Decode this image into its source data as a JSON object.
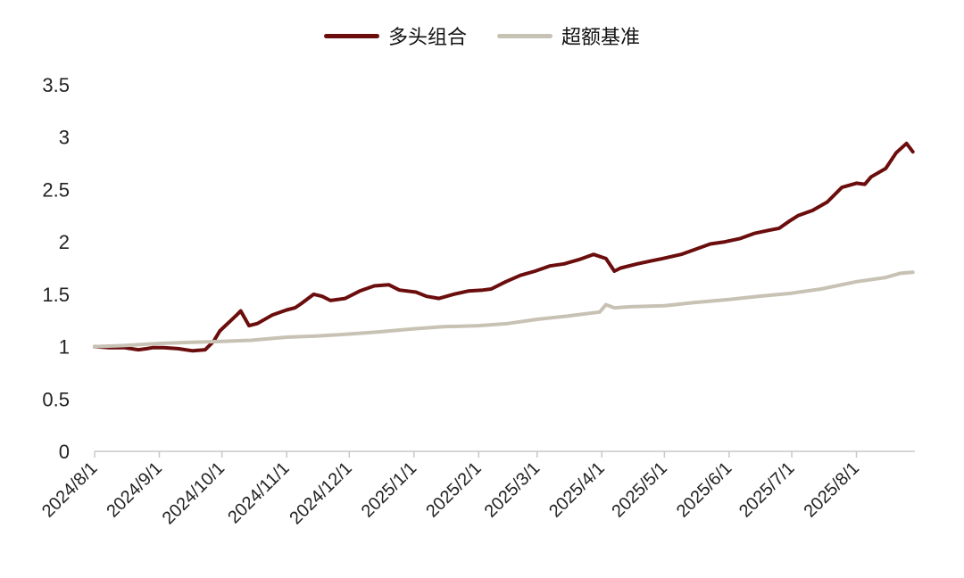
{
  "colors": {
    "portfolio": "#6b0d0d",
    "benchmark": "#c7c2b4",
    "axis": "#c8c8c8"
  },
  "chart_data": {
    "type": "line",
    "title": "",
    "xlabel": "",
    "ylabel": "",
    "ylim": [
      0,
      3.5
    ],
    "yticks": [
      "0",
      "0.5",
      "1",
      "1.5",
      "2",
      "2.5",
      "3",
      "3.5"
    ],
    "grid": false,
    "legend_position": "top-center",
    "x_range": [
      "2024-08-01",
      "2025-08-29"
    ],
    "xticks": [
      "2024/8/1",
      "2024/9/1",
      "2024/10/1",
      "2024/11/1",
      "2024/12/1",
      "2025/1/1",
      "2025/2/1",
      "2025/3/1",
      "2025/4/1",
      "2025/5/1",
      "2025/6/1",
      "2025/7/1",
      "2025/8/1"
    ],
    "series": [
      {
        "name": "多头组合",
        "color": "#6b0d0d",
        "points": [
          [
            "2024-08-01",
            1.0
          ],
          [
            "2024-08-08",
            0.99
          ],
          [
            "2024-08-15",
            0.99
          ],
          [
            "2024-08-22",
            0.97
          ],
          [
            "2024-08-26",
            0.98
          ],
          [
            "2024-08-29",
            0.99
          ],
          [
            "2024-09-03",
            0.99
          ],
          [
            "2024-09-10",
            0.98
          ],
          [
            "2024-09-17",
            0.96
          ],
          [
            "2024-09-23",
            0.97
          ],
          [
            "2024-09-27",
            1.05
          ],
          [
            "2024-09-30",
            1.15
          ],
          [
            "2024-10-08",
            1.3
          ],
          [
            "2024-10-10",
            1.34
          ],
          [
            "2024-10-14",
            1.2
          ],
          [
            "2024-10-18",
            1.22
          ],
          [
            "2024-10-25",
            1.3
          ],
          [
            "2024-11-01",
            1.35
          ],
          [
            "2024-11-05",
            1.37
          ],
          [
            "2024-11-08",
            1.41
          ],
          [
            "2024-11-14",
            1.5
          ],
          [
            "2024-11-18",
            1.48
          ],
          [
            "2024-11-22",
            1.44
          ],
          [
            "2024-11-29",
            1.46
          ],
          [
            "2024-12-06",
            1.53
          ],
          [
            "2024-12-13",
            1.58
          ],
          [
            "2024-12-20",
            1.59
          ],
          [
            "2024-12-25",
            1.54
          ],
          [
            "2025-01-02",
            1.52
          ],
          [
            "2025-01-07",
            1.48
          ],
          [
            "2025-01-13",
            1.46
          ],
          [
            "2025-01-20",
            1.5
          ],
          [
            "2025-01-27",
            1.53
          ],
          [
            "2025-02-03",
            1.54
          ],
          [
            "2025-02-07",
            1.55
          ],
          [
            "2025-02-14",
            1.62
          ],
          [
            "2025-02-21",
            1.68
          ],
          [
            "2025-02-28",
            1.72
          ],
          [
            "2025-03-07",
            1.77
          ],
          [
            "2025-03-14",
            1.79
          ],
          [
            "2025-03-21",
            1.83
          ],
          [
            "2025-03-28",
            1.88
          ],
          [
            "2025-04-03",
            1.84
          ],
          [
            "2025-04-07",
            1.72
          ],
          [
            "2025-04-10",
            1.75
          ],
          [
            "2025-04-18",
            1.79
          ],
          [
            "2025-04-25",
            1.82
          ],
          [
            "2025-04-30",
            1.84
          ],
          [
            "2025-05-09",
            1.88
          ],
          [
            "2025-05-16",
            1.93
          ],
          [
            "2025-05-23",
            1.98
          ],
          [
            "2025-05-30",
            2.0
          ],
          [
            "2025-06-06",
            2.03
          ],
          [
            "2025-06-13",
            2.08
          ],
          [
            "2025-06-20",
            2.11
          ],
          [
            "2025-06-25",
            2.13
          ],
          [
            "2025-06-30",
            2.2
          ],
          [
            "2025-07-04",
            2.25
          ],
          [
            "2025-07-11",
            2.3
          ],
          [
            "2025-07-18",
            2.38
          ],
          [
            "2025-07-25",
            2.52
          ],
          [
            "2025-08-01",
            2.56
          ],
          [
            "2025-08-05",
            2.55
          ],
          [
            "2025-08-08",
            2.62
          ],
          [
            "2025-08-15",
            2.7
          ],
          [
            "2025-08-20",
            2.85
          ],
          [
            "2025-08-25",
            2.94
          ],
          [
            "2025-08-28",
            2.86
          ]
        ]
      },
      {
        "name": "超额基准",
        "color": "#c7c2b4",
        "points": [
          [
            "2024-08-01",
            1.0
          ],
          [
            "2024-08-15",
            1.01
          ],
          [
            "2024-09-01",
            1.03
          ],
          [
            "2024-09-15",
            1.04
          ],
          [
            "2024-10-01",
            1.05
          ],
          [
            "2024-10-15",
            1.06
          ],
          [
            "2024-11-01",
            1.09
          ],
          [
            "2024-11-15",
            1.1
          ],
          [
            "2024-12-01",
            1.12
          ],
          [
            "2024-12-15",
            1.14
          ],
          [
            "2025-01-01",
            1.17
          ],
          [
            "2025-01-15",
            1.19
          ],
          [
            "2025-02-01",
            1.2
          ],
          [
            "2025-02-15",
            1.22
          ],
          [
            "2025-03-01",
            1.26
          ],
          [
            "2025-03-15",
            1.29
          ],
          [
            "2025-03-31",
            1.33
          ],
          [
            "2025-04-03",
            1.4
          ],
          [
            "2025-04-07",
            1.37
          ],
          [
            "2025-04-15",
            1.38
          ],
          [
            "2025-05-01",
            1.39
          ],
          [
            "2025-05-15",
            1.42
          ],
          [
            "2025-06-01",
            1.45
          ],
          [
            "2025-06-15",
            1.48
          ],
          [
            "2025-07-01",
            1.51
          ],
          [
            "2025-07-15",
            1.55
          ],
          [
            "2025-08-01",
            1.62
          ],
          [
            "2025-08-15",
            1.66
          ],
          [
            "2025-08-22",
            1.7
          ],
          [
            "2025-08-28",
            1.71
          ]
        ]
      }
    ]
  }
}
